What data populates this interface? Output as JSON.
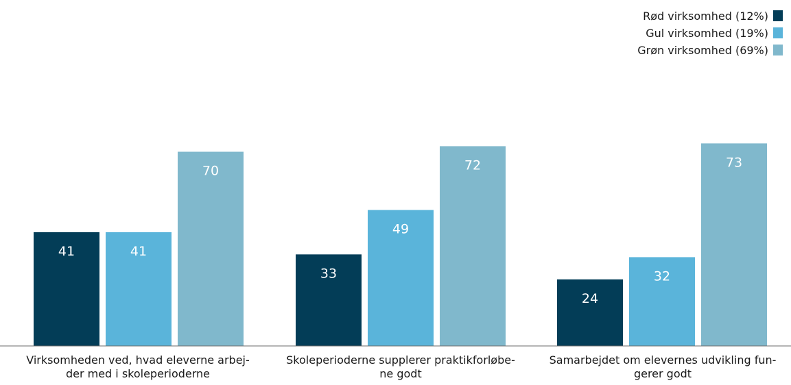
{
  "chart_data": {
    "type": "bar",
    "title": "",
    "xlabel": "",
    "ylabel": "",
    "ylim": [
      0,
      100
    ],
    "grid": false,
    "legend_position": "top-right",
    "categories": [
      {
        "lines": [
          "Virksomheden ved, hvad eleverne arbej-",
          "der med i skoleperioderne"
        ]
      },
      {
        "lines": [
          "Skoleperioderne supplerer praktikforløbe-",
          "ne godt"
        ]
      },
      {
        "lines": [
          "Samarbejdet om elevernes udvikling fun-",
          "gerer godt"
        ]
      }
    ],
    "series": [
      {
        "name": "Rød virksomhed (12%)",
        "color": "#033d57",
        "values": [
          41,
          33,
          24
        ]
      },
      {
        "name": "Gul virksomhed (19%)",
        "color": "#5ab4da",
        "values": [
          41,
          49,
          32
        ]
      },
      {
        "name": "Grøn virksomhed (69%)",
        "color": "#80b8cc",
        "values": [
          70,
          72,
          73
        ]
      }
    ]
  }
}
